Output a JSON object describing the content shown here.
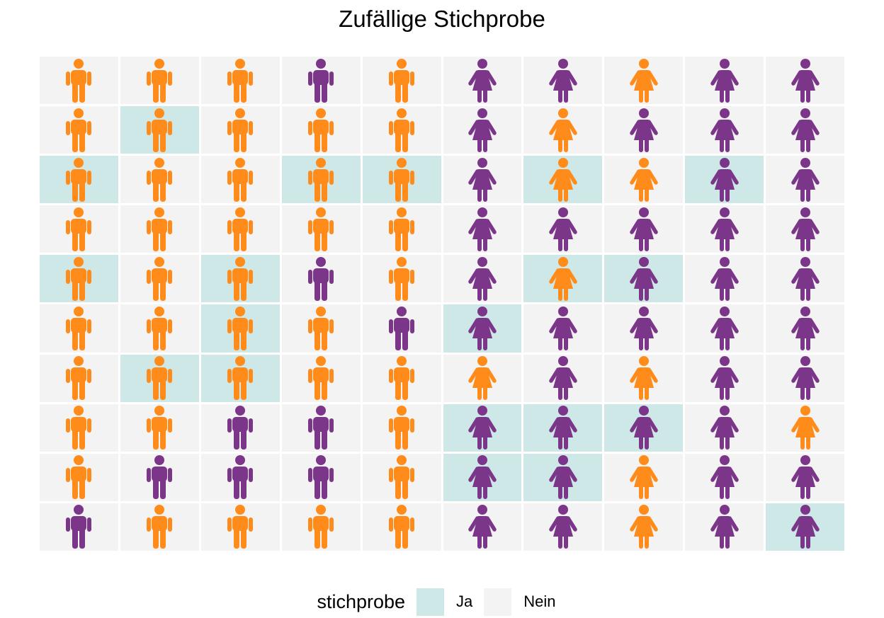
{
  "chart_data": {
    "type": "pictogram-grid",
    "title": "Zufällige Stichprobe",
    "rows": 10,
    "cols": 10,
    "colors": {
      "orange": "#ff8c1a",
      "purple": "#7b3589",
      "ja": "#cde8e7",
      "nein": "#f3f3f3"
    },
    "icons": {
      "male": "male-person-icon",
      "female": "female-person-icon"
    },
    "cells": [
      [
        "M",
        "O",
        "N"
      ],
      [
        "M",
        "O",
        "N"
      ],
      [
        "M",
        "O",
        "N"
      ],
      [
        "M",
        "P",
        "N"
      ],
      [
        "M",
        "O",
        "N"
      ],
      [
        "F",
        "P",
        "N"
      ],
      [
        "F",
        "P",
        "N"
      ],
      [
        "F",
        "O",
        "N"
      ],
      [
        "F",
        "P",
        "N"
      ],
      [
        "F",
        "P",
        "N"
      ],
      [
        "M",
        "O",
        "N"
      ],
      [
        "M",
        "O",
        "J"
      ],
      [
        "M",
        "O",
        "N"
      ],
      [
        "M",
        "O",
        "N"
      ],
      [
        "M",
        "O",
        "N"
      ],
      [
        "F",
        "P",
        "N"
      ],
      [
        "F",
        "O",
        "N"
      ],
      [
        "F",
        "P",
        "N"
      ],
      [
        "F",
        "P",
        "N"
      ],
      [
        "F",
        "P",
        "N"
      ],
      [
        "M",
        "O",
        "J"
      ],
      [
        "M",
        "O",
        "N"
      ],
      [
        "M",
        "O",
        "N"
      ],
      [
        "M",
        "O",
        "J"
      ],
      [
        "M",
        "O",
        "J"
      ],
      [
        "F",
        "P",
        "N"
      ],
      [
        "F",
        "O",
        "J"
      ],
      [
        "F",
        "O",
        "N"
      ],
      [
        "F",
        "P",
        "J"
      ],
      [
        "F",
        "P",
        "N"
      ],
      [
        "M",
        "O",
        "N"
      ],
      [
        "M",
        "O",
        "N"
      ],
      [
        "M",
        "O",
        "N"
      ],
      [
        "M",
        "O",
        "N"
      ],
      [
        "M",
        "O",
        "N"
      ],
      [
        "F",
        "P",
        "N"
      ],
      [
        "F",
        "P",
        "N"
      ],
      [
        "F",
        "P",
        "N"
      ],
      [
        "F",
        "P",
        "N"
      ],
      [
        "F",
        "P",
        "N"
      ],
      [
        "M",
        "O",
        "J"
      ],
      [
        "M",
        "O",
        "N"
      ],
      [
        "M",
        "O",
        "J"
      ],
      [
        "M",
        "P",
        "N"
      ],
      [
        "M",
        "O",
        "N"
      ],
      [
        "F",
        "P",
        "N"
      ],
      [
        "F",
        "O",
        "J"
      ],
      [
        "F",
        "P",
        "J"
      ],
      [
        "F",
        "P",
        "N"
      ],
      [
        "F",
        "P",
        "N"
      ],
      [
        "M",
        "O",
        "N"
      ],
      [
        "M",
        "O",
        "N"
      ],
      [
        "M",
        "O",
        "J"
      ],
      [
        "M",
        "O",
        "N"
      ],
      [
        "M",
        "P",
        "N"
      ],
      [
        "F",
        "P",
        "J"
      ],
      [
        "F",
        "P",
        "N"
      ],
      [
        "F",
        "P",
        "N"
      ],
      [
        "F",
        "P",
        "N"
      ],
      [
        "F",
        "P",
        "N"
      ],
      [
        "M",
        "O",
        "N"
      ],
      [
        "M",
        "O",
        "J"
      ],
      [
        "M",
        "O",
        "J"
      ],
      [
        "M",
        "O",
        "N"
      ],
      [
        "M",
        "O",
        "N"
      ],
      [
        "F",
        "O",
        "N"
      ],
      [
        "F",
        "P",
        "N"
      ],
      [
        "F",
        "O",
        "N"
      ],
      [
        "F",
        "P",
        "N"
      ],
      [
        "F",
        "P",
        "N"
      ],
      [
        "M",
        "O",
        "N"
      ],
      [
        "M",
        "O",
        "N"
      ],
      [
        "M",
        "P",
        "N"
      ],
      [
        "M",
        "P",
        "N"
      ],
      [
        "M",
        "O",
        "N"
      ],
      [
        "F",
        "P",
        "J"
      ],
      [
        "F",
        "P",
        "J"
      ],
      [
        "F",
        "P",
        "J"
      ],
      [
        "F",
        "P",
        "N"
      ],
      [
        "F",
        "O",
        "N"
      ],
      [
        "M",
        "O",
        "N"
      ],
      [
        "M",
        "P",
        "N"
      ],
      [
        "M",
        "P",
        "N"
      ],
      [
        "M",
        "P",
        "N"
      ],
      [
        "M",
        "O",
        "N"
      ],
      [
        "F",
        "P",
        "J"
      ],
      [
        "F",
        "P",
        "J"
      ],
      [
        "F",
        "O",
        "N"
      ],
      [
        "F",
        "P",
        "N"
      ],
      [
        "F",
        "P",
        "N"
      ],
      [
        "M",
        "P",
        "N"
      ],
      [
        "M",
        "O",
        "N"
      ],
      [
        "M",
        "O",
        "N"
      ],
      [
        "M",
        "O",
        "N"
      ],
      [
        "M",
        "O",
        "N"
      ],
      [
        "F",
        "P",
        "N"
      ],
      [
        "F",
        "P",
        "N"
      ],
      [
        "F",
        "O",
        "N"
      ],
      [
        "F",
        "P",
        "N"
      ],
      [
        "F",
        "P",
        "J"
      ]
    ],
    "legend": {
      "title": "stichprobe",
      "entries": [
        {
          "key": "J",
          "label": "Ja"
        },
        {
          "key": "N",
          "label": "Nein"
        }
      ]
    }
  }
}
